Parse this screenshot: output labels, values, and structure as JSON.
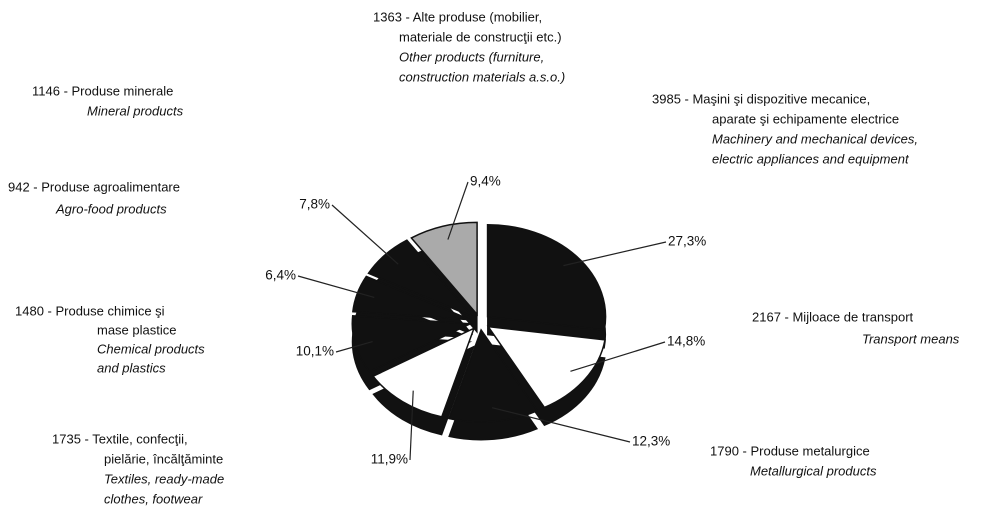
{
  "chart_data": {
    "type": "pie",
    "values": [
      27.3,
      14.8,
      12.3,
      11.9,
      10.1,
      6.4,
      7.8,
      9.4
    ],
    "value_labels": [
      "27,3%",
      "14,8%",
      "12,3%",
      "11,9%",
      "10,1%",
      "6,4%",
      "7,8%",
      "9,4%"
    ],
    "colors": [
      "#111111",
      "#ffffff",
      "#111111",
      "#ffffff",
      "#111111",
      "#111111",
      "#111111",
      "#aaaaaa"
    ],
    "labels": [
      {
        "ro": [
          "3985 - Maşini şi dispozitive mecanice,",
          "aparate şi echipamente electrice"
        ],
        "en": [
          "Machinery and mechanical devices,",
          "electric appliances and equipment"
        ]
      },
      {
        "ro": [
          "2167 - Mijloace de transport"
        ],
        "en": [
          "Transport means"
        ]
      },
      {
        "ro": [
          "1790 - Produse metalurgice"
        ],
        "en": [
          "Metallurgical products"
        ]
      },
      {
        "ro": [
          "1735 - Textile, confecţii,",
          "pielărie, încălţăminte"
        ],
        "en": [
          "Textiles, ready-made",
          "clothes, footwear"
        ]
      },
      {
        "ro": [
          "1480 - Produse chimice şi",
          "mase plastice"
        ],
        "en": [
          "Chemical products",
          "and plastics"
        ]
      },
      {
        "ro": [
          "942 - Produse agroalimentare"
        ],
        "en": [
          "Agro-food products"
        ]
      },
      {
        "ro": [
          "1146 - Produse minerale"
        ],
        "en": [
          "Mineral products"
        ]
      },
      {
        "ro": [
          "1363 - Alte produse (mobilier,",
          "materiale de construcţii etc.)"
        ],
        "en": [
          "Other products (furniture,",
          "construction materials a.s.o.)"
        ]
      }
    ]
  }
}
